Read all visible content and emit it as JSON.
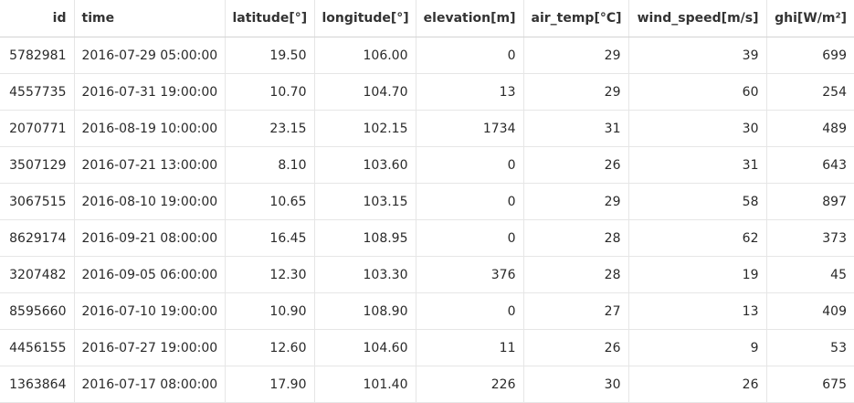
{
  "table": {
    "columns": [
      {
        "label": "id"
      },
      {
        "label": "time"
      },
      {
        "label": "latitude[°]"
      },
      {
        "label": "longitude[°]"
      },
      {
        "label": "elevation[m]"
      },
      {
        "label": "air_temp[°C]"
      },
      {
        "label": "wind_speed[m/s]"
      },
      {
        "label": "ghi[W/m²]"
      }
    ],
    "rows": [
      [
        "5782981",
        "2016-07-29 05:00:00",
        "19.50",
        "106.00",
        "0",
        "29",
        "39",
        "699"
      ],
      [
        "4557735",
        "2016-07-31 19:00:00",
        "10.70",
        "104.70",
        "13",
        "29",
        "60",
        "254"
      ],
      [
        "2070771",
        "2016-08-19 10:00:00",
        "23.15",
        "102.15",
        "1734",
        "31",
        "30",
        "489"
      ],
      [
        "3507129",
        "2016-07-21 13:00:00",
        "8.10",
        "103.60",
        "0",
        "26",
        "31",
        "643"
      ],
      [
        "3067515",
        "2016-08-10 19:00:00",
        "10.65",
        "103.15",
        "0",
        "29",
        "58",
        "897"
      ],
      [
        "8629174",
        "2016-09-21 08:00:00",
        "16.45",
        "108.95",
        "0",
        "28",
        "62",
        "373"
      ],
      [
        "3207482",
        "2016-09-05 06:00:00",
        "12.30",
        "103.30",
        "376",
        "28",
        "19",
        "45"
      ],
      [
        "8595660",
        "2016-07-10 19:00:00",
        "10.90",
        "108.90",
        "0",
        "27",
        "13",
        "409"
      ],
      [
        "4456155",
        "2016-07-27 19:00:00",
        "12.60",
        "104.60",
        "11",
        "26",
        "9",
        "53"
      ],
      [
        "1363864",
        "2016-07-17 08:00:00",
        "17.90",
        "101.40",
        "226",
        "30",
        "26",
        "675"
      ]
    ]
  }
}
